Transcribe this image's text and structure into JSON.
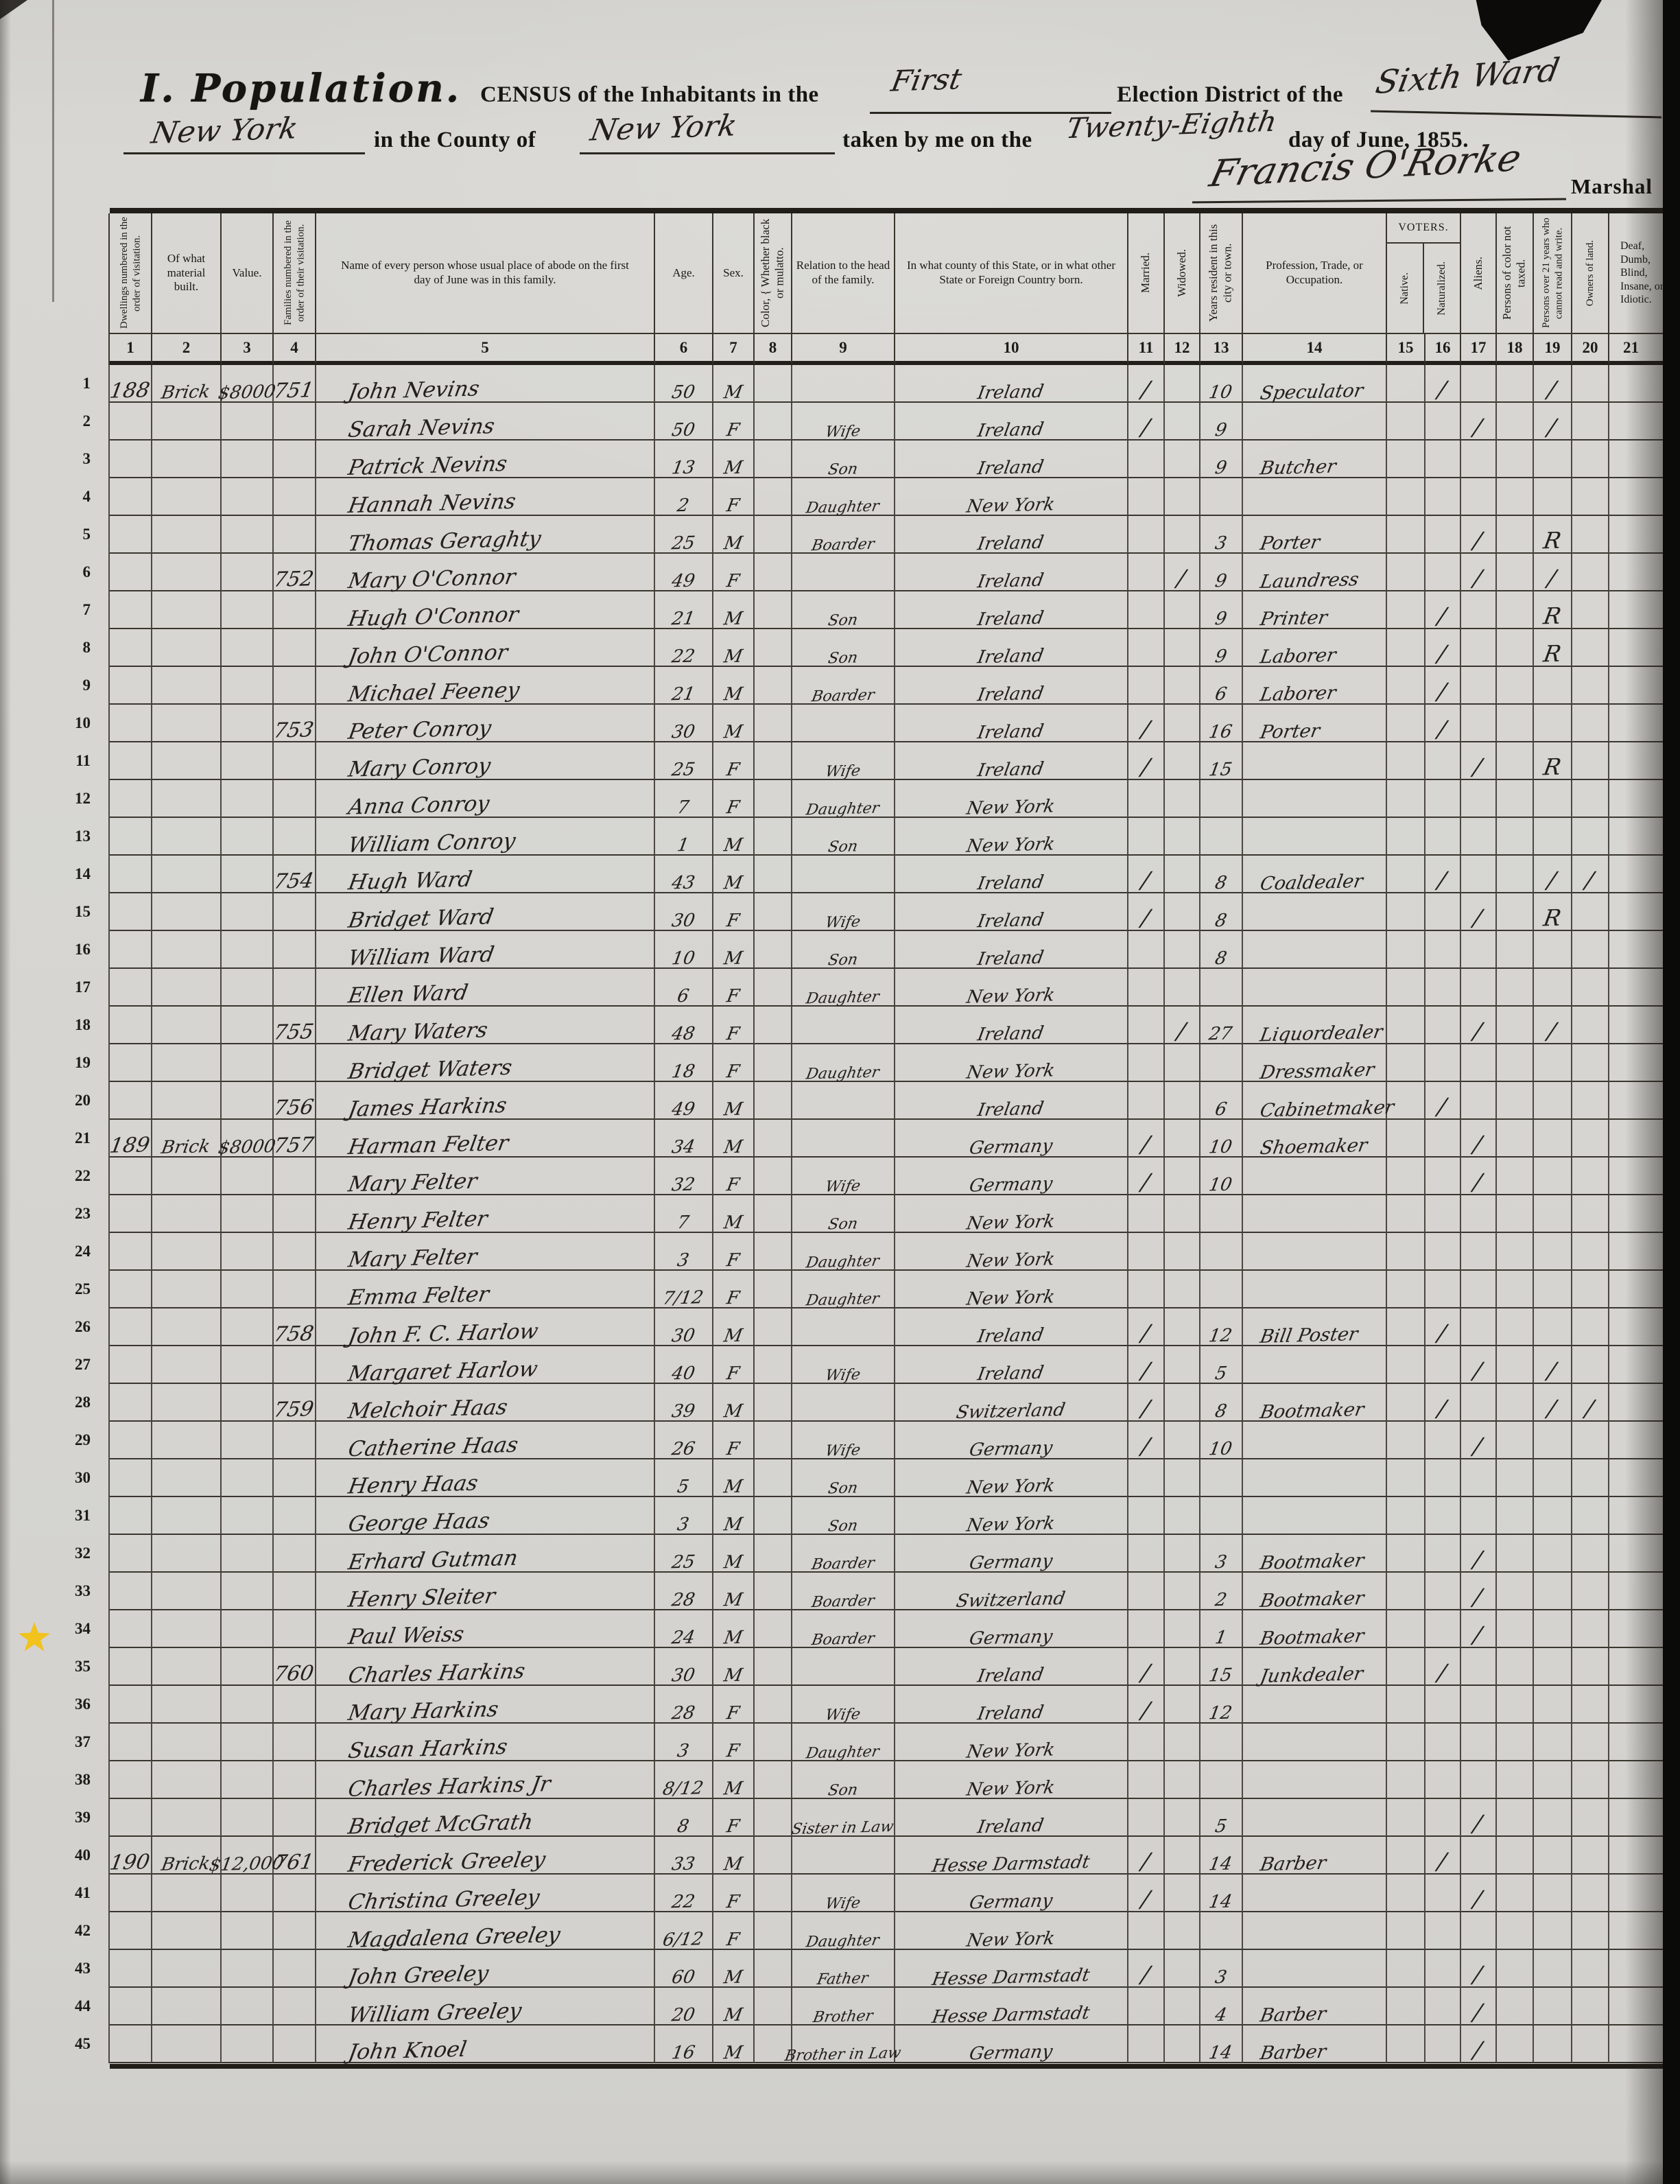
{
  "header": {
    "section_title": "I. Population.",
    "census_pre": "CENSUS of the Inhabitants in the",
    "district_fill": "First",
    "election_pre": "Election District of the",
    "ward_fill": "Sixth Ward",
    "city_fill": "New York",
    "county_pre": "in the County of",
    "county_fill": "New York",
    "taken_pre": "taken by me on the",
    "day_fill": "Twenty-Eighth",
    "day_post": "day of June, 1855.",
    "signature": "Francis O'Rorke",
    "signature_title": "Marshal"
  },
  "annotation": {
    "star_color": "#f2c21d"
  },
  "table": {
    "voters_label": "VOTERS.",
    "columns": [
      {
        "num": "1",
        "label": "Dwellings numbered in the order of visitation.",
        "vertical": true
      },
      {
        "num": "2",
        "label": "Of what material built.",
        "vertical": false
      },
      {
        "num": "3",
        "label": "Value.",
        "vertical": false
      },
      {
        "num": "4",
        "label": "Families numbered in the order of their visitation.",
        "vertical": true
      },
      {
        "num": "5",
        "label": "Name of every person whose usual place of abode on the first day of June was in this family.",
        "vertical": false
      },
      {
        "num": "6",
        "label": "Age.",
        "vertical": false
      },
      {
        "num": "7",
        "label": "Sex.",
        "vertical": false
      },
      {
        "num": "8",
        "label": "Color, { Whether black or mulatto.",
        "vertical": true
      },
      {
        "num": "9",
        "label": "Relation to the head of the family.",
        "vertical": false
      },
      {
        "num": "10",
        "label": "In what county of this State, or in what other State or Foreign Country born.",
        "vertical": false
      },
      {
        "num": "11",
        "label": "Married.",
        "vertical": true
      },
      {
        "num": "12",
        "label": "Widowed.",
        "vertical": true
      },
      {
        "num": "13",
        "label": "Years resident in this city or town.",
        "vertical": true
      },
      {
        "num": "14",
        "label": "Profession, Trade, or Occupation.",
        "vertical": false
      },
      {
        "num": "15",
        "label": "Native.",
        "vertical": true
      },
      {
        "num": "16",
        "label": "Naturalized.",
        "vertical": true
      },
      {
        "num": "17",
        "label": "Aliens.",
        "vertical": true
      },
      {
        "num": "18",
        "label": "Persons of color not taxed.",
        "vertical": true
      },
      {
        "num": "19",
        "label": "Persons over 21 years who cannot read and write.",
        "vertical": true
      },
      {
        "num": "20",
        "label": "Owners of land.",
        "vertical": true
      },
      {
        "num": "21",
        "label": "Deaf, Dumb, Blind, Insane, or Idiotic.",
        "vertical": false
      }
    ],
    "rows": [
      {
        "n": "1",
        "d": "188",
        "m": "Brick",
        "v": "$8000",
        "f": "751",
        "name": "John Nevins",
        "age": "50",
        "sex": "M",
        "born": "Ireland",
        "mar": "1",
        "yrs": "10",
        "occ": "Speculator",
        "c16": "1",
        "c19": "1"
      },
      {
        "n": "2",
        "name": "Sarah Nevins",
        "age": "50",
        "sex": "F",
        "rel": "Wife",
        "born": "Ireland",
        "mar": "1",
        "yrs": "9",
        "c17": "1",
        "c19": "1"
      },
      {
        "n": "3",
        "name": "Patrick Nevins",
        "age": "13",
        "sex": "M",
        "rel": "Son",
        "born": "Ireland",
        "yrs": "9",
        "occ": "Butcher"
      },
      {
        "n": "4",
        "name": "Hannah Nevins",
        "age": "2",
        "sex": "F",
        "rel": "Daughter",
        "born": "New York"
      },
      {
        "n": "5",
        "name": "Thomas Geraghty",
        "age": "25",
        "sex": "M",
        "rel": "Boarder",
        "born": "Ireland",
        "yrs": "3",
        "occ": "Porter",
        "c17": "1",
        "c19": "R"
      },
      {
        "n": "6",
        "f": "752",
        "name": "Mary O'Connor",
        "age": "49",
        "sex": "F",
        "born": "Ireland",
        "wid": "1",
        "yrs": "9",
        "occ": "Laundress",
        "c17": "1",
        "c19": "1"
      },
      {
        "n": "7",
        "name": "Hugh O'Connor",
        "age": "21",
        "sex": "M",
        "rel": "Son",
        "born": "Ireland",
        "yrs": "9",
        "occ": "Printer",
        "c16": "1",
        "c19": "R"
      },
      {
        "n": "8",
        "name": "John O'Connor",
        "age": "22",
        "sex": "M",
        "rel": "Son",
        "born": "Ireland",
        "yrs": "9",
        "occ": "Laborer",
        "c16": "1",
        "c19": "R"
      },
      {
        "n": "9",
        "name": "Michael Feeney",
        "age": "21",
        "sex": "M",
        "rel": "Boarder",
        "born": "Ireland",
        "yrs": "6",
        "occ": "Laborer",
        "c16": "1"
      },
      {
        "n": "10",
        "f": "753",
        "name": "Peter Conroy",
        "age": "30",
        "sex": "M",
        "born": "Ireland",
        "mar": "1",
        "yrs": "16",
        "occ": "Porter",
        "c16": "1"
      },
      {
        "n": "11",
        "name": "Mary Conroy",
        "age": "25",
        "sex": "F",
        "rel": "Wife",
        "born": "Ireland",
        "mar": "1",
        "yrs": "15",
        "c17": "1",
        "c19": "R"
      },
      {
        "n": "12",
        "name": "Anna Conroy",
        "age": "7",
        "sex": "F",
        "rel": "Daughter",
        "born": "New York"
      },
      {
        "n": "13",
        "name": "William Conroy",
        "age": "1",
        "sex": "M",
        "rel": "Son",
        "born": "New York"
      },
      {
        "n": "14",
        "f": "754",
        "name": "Hugh Ward",
        "age": "43",
        "sex": "M",
        "born": "Ireland",
        "mar": "1",
        "yrs": "8",
        "occ": "Coaldealer",
        "c16": "1",
        "c19": "1",
        "c20": "1"
      },
      {
        "n": "15",
        "name": "Bridget Ward",
        "age": "30",
        "sex": "F",
        "rel": "Wife",
        "born": "Ireland",
        "mar": "1",
        "yrs": "8",
        "c17": "1",
        "c19": "R"
      },
      {
        "n": "16",
        "name": "William Ward",
        "age": "10",
        "sex": "M",
        "rel": "Son",
        "born": "Ireland",
        "yrs": "8"
      },
      {
        "n": "17",
        "name": "Ellen Ward",
        "age": "6",
        "sex": "F",
        "rel": "Daughter",
        "born": "New York"
      },
      {
        "n": "18",
        "f": "755",
        "name": "Mary Waters",
        "age": "48",
        "sex": "F",
        "born": "Ireland",
        "wid": "1",
        "yrs": "27",
        "occ": "Liquordealer",
        "c17": "1",
        "c19": "1"
      },
      {
        "n": "19",
        "name": "Bridget Waters",
        "age": "18",
        "sex": "F",
        "rel": "Daughter",
        "born": "New York",
        "occ": "Dressmaker"
      },
      {
        "n": "20",
        "f": "756",
        "name": "James Harkins",
        "age": "49",
        "sex": "M",
        "born": "Ireland",
        "yrs": "6",
        "occ": "Cabinetmaker",
        "c16": "1"
      },
      {
        "n": "21",
        "d": "189",
        "m": "Brick",
        "v": "$8000",
        "f": "757",
        "name": "Harman Felter",
        "age": "34",
        "sex": "M",
        "born": "Germany",
        "mar": "1",
        "yrs": "10",
        "occ": "Shoemaker",
        "c17": "1"
      },
      {
        "n": "22",
        "name": "Mary Felter",
        "age": "32",
        "sex": "F",
        "rel": "Wife",
        "born": "Germany",
        "mar": "1",
        "yrs": "10",
        "c17": "1"
      },
      {
        "n": "23",
        "name": "Henry Felter",
        "age": "7",
        "sex": "M",
        "rel": "Son",
        "born": "New York"
      },
      {
        "n": "24",
        "name": "Mary Felter",
        "age": "3",
        "sex": "F",
        "rel": "Daughter",
        "born": "New York"
      },
      {
        "n": "25",
        "name": "Emma Felter",
        "age": "7/12",
        "sex": "F",
        "rel": "Daughter",
        "born": "New York"
      },
      {
        "n": "26",
        "f": "758",
        "name": "John F. C. Harlow",
        "age": "30",
        "sex": "M",
        "born": "Ireland",
        "mar": "1",
        "yrs": "12",
        "occ": "Bill Poster",
        "c16": "1"
      },
      {
        "n": "27",
        "name": "Margaret Harlow",
        "age": "40",
        "sex": "F",
        "rel": "Wife",
        "born": "Ireland",
        "mar": "1",
        "yrs": "5",
        "c17": "1",
        "c19": "1"
      },
      {
        "n": "28",
        "f": "759",
        "name": "Melchoir Haas",
        "age": "39",
        "sex": "M",
        "born": "Switzerland",
        "mar": "1",
        "yrs": "8",
        "occ": "Bootmaker",
        "c16": "1",
        "c19": "1",
        "c20": "1"
      },
      {
        "n": "29",
        "name": "Catherine Haas",
        "age": "26",
        "sex": "F",
        "rel": "Wife",
        "born": "Germany",
        "mar": "1",
        "yrs": "10",
        "c17": "1"
      },
      {
        "n": "30",
        "name": "Henry Haas",
        "age": "5",
        "sex": "M",
        "rel": "Son",
        "born": "New York"
      },
      {
        "n": "31",
        "name": "George Haas",
        "age": "3",
        "sex": "M",
        "rel": "Son",
        "born": "New York"
      },
      {
        "n": "32",
        "name": "Erhard Gutman",
        "age": "25",
        "sex": "M",
        "rel": "Boarder",
        "born": "Germany",
        "yrs": "3",
        "occ": "Bootmaker",
        "c17": "1"
      },
      {
        "n": "33",
        "name": "Henry Sleiter",
        "age": "28",
        "sex": "M",
        "rel": "Boarder",
        "born": "Switzerland",
        "yrs": "2",
        "occ": "Bootmaker",
        "c17": "1"
      },
      {
        "n": "34",
        "name": "Paul Weiss",
        "age": "24",
        "sex": "M",
        "rel": "Boarder",
        "born": "Germany",
        "yrs": "1",
        "occ": "Bootmaker",
        "c17": "1"
      },
      {
        "n": "35",
        "f": "760",
        "name": "Charles Harkins",
        "age": "30",
        "sex": "M",
        "born": "Ireland",
        "mar": "1",
        "yrs": "15",
        "occ": "Junkdealer",
        "c16": "1"
      },
      {
        "n": "36",
        "name": "Mary Harkins",
        "age": "28",
        "sex": "F",
        "rel": "Wife",
        "born": "Ireland",
        "mar": "1",
        "yrs": "12"
      },
      {
        "n": "37",
        "name": "Susan Harkins",
        "age": "3",
        "sex": "F",
        "rel": "Daughter",
        "born": "New York"
      },
      {
        "n": "38",
        "name": "Charles Harkins Jr",
        "age": "8/12",
        "sex": "M",
        "rel": "Son",
        "born": "New York"
      },
      {
        "n": "39",
        "name": "Bridget McGrath",
        "age": "8",
        "sex": "F",
        "rel": "Sister in Law",
        "born": "Ireland",
        "yrs": "5",
        "c17": "1"
      },
      {
        "n": "40",
        "d": "190",
        "m": "Brick",
        "v": "$12,000",
        "f": "761",
        "name": "Frederick Greeley",
        "age": "33",
        "sex": "M",
        "born": "Hesse Darmstadt",
        "mar": "1",
        "yrs": "14",
        "occ": "Barber",
        "c16": "1"
      },
      {
        "n": "41",
        "name": "Christina Greeley",
        "age": "22",
        "sex": "F",
        "rel": "Wife",
        "born": "Germany",
        "mar": "1",
        "yrs": "14",
        "c17": "1"
      },
      {
        "n": "42",
        "name": "Magdalena Greeley",
        "age": "6/12",
        "sex": "F",
        "rel": "Daughter",
        "born": "New York"
      },
      {
        "n": "43",
        "name": "John Greeley",
        "age": "60",
        "sex": "M",
        "rel": "Father",
        "born": "Hesse Darmstadt",
        "mar": "1",
        "yrs": "3",
        "c17": "1"
      },
      {
        "n": "44",
        "name": "William Greeley",
        "age": "20",
        "sex": "M",
        "rel": "Brother",
        "born": "Hesse Darmstadt",
        "yrs": "4",
        "occ": "Barber",
        "c17": "1"
      },
      {
        "n": "45",
        "name": "John Knoel",
        "age": "16",
        "sex": "M",
        "rel": "Brother in Law",
        "born": "Germany",
        "yrs": "14",
        "occ": "Barber",
        "c17": "1"
      }
    ]
  }
}
